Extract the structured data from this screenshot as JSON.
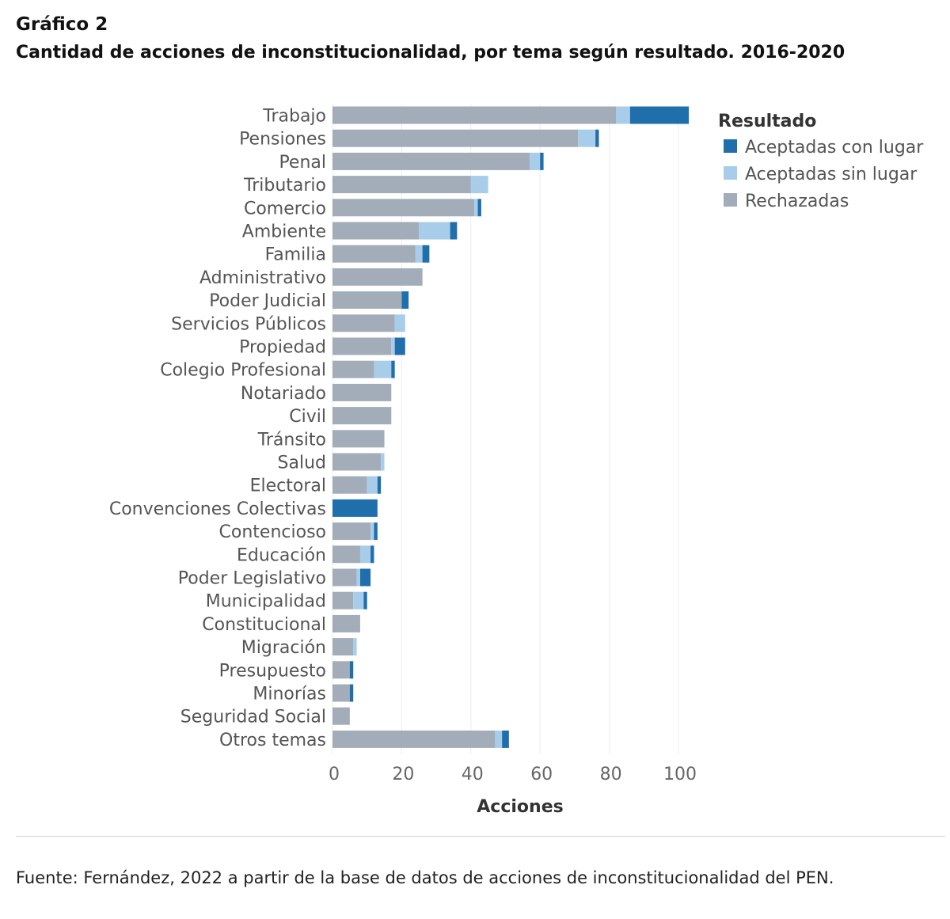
{
  "header": {
    "label": "Gráfico 2",
    "title": "Cantidad de acciones de inconstitucionalidad, por tema según resultado. 2016-2020"
  },
  "source": "Fuente: Fernández, 2022 a partir de la base de datos de acciones de inconstitucionalidad del PEN.",
  "chart_data": {
    "type": "bar",
    "orientation": "horizontal",
    "stacked": true,
    "xlabel": "Acciones",
    "ylabel": "",
    "xlim": [
      0,
      108
    ],
    "xticks": [
      0,
      20,
      40,
      60,
      80,
      100
    ],
    "grid": true,
    "legend_position": "right",
    "legend_title": "Resultado",
    "categories": [
      "Trabajo",
      "Pensiones",
      "Penal",
      "Tributario",
      "Comercio",
      "Ambiente",
      "Familia",
      "Administrativo",
      "Poder Judicial",
      "Servicios Públicos",
      "Propiedad",
      "Colegio Profesional",
      "Notariado",
      "Civil",
      "Tránsito",
      "Salud",
      "Electoral",
      "Convenciones Colectivas",
      "Contencioso",
      "Educación",
      "Poder Legislativo",
      "Municipalidad",
      "Constitucional",
      "Migración",
      "Presupuesto",
      "Minorías",
      "Seguridad Social",
      "Otros temas"
    ],
    "series": [
      {
        "name": "Rechazadas",
        "color": "#a3acb9",
        "values": [
          82,
          71,
          57,
          40,
          41,
          25,
          24,
          26,
          20,
          18,
          17,
          12,
          17,
          17,
          15,
          14,
          10,
          0,
          11,
          8,
          7,
          6,
          8,
          6,
          5,
          5,
          5,
          47
        ]
      },
      {
        "name": "Aceptadas sin lugar",
        "color": "#a8cdea",
        "values": [
          4,
          5,
          3,
          5,
          1,
          9,
          2,
          0,
          0,
          3,
          1,
          5,
          0,
          0,
          0,
          1,
          3,
          0,
          1,
          3,
          1,
          3,
          0,
          1,
          0,
          0,
          0,
          2
        ]
      },
      {
        "name": "Aceptadas con lugar",
        "color": "#1f6fad",
        "values": [
          17,
          1,
          1,
          0,
          1,
          2,
          2,
          0,
          2,
          0,
          3,
          1,
          0,
          0,
          0,
          0,
          1,
          13,
          1,
          1,
          3,
          1,
          0,
          0,
          1,
          1,
          0,
          2
        ]
      }
    ],
    "legend_order": [
      "Aceptadas con lugar",
      "Aceptadas sin lugar",
      "Rechazadas"
    ]
  }
}
